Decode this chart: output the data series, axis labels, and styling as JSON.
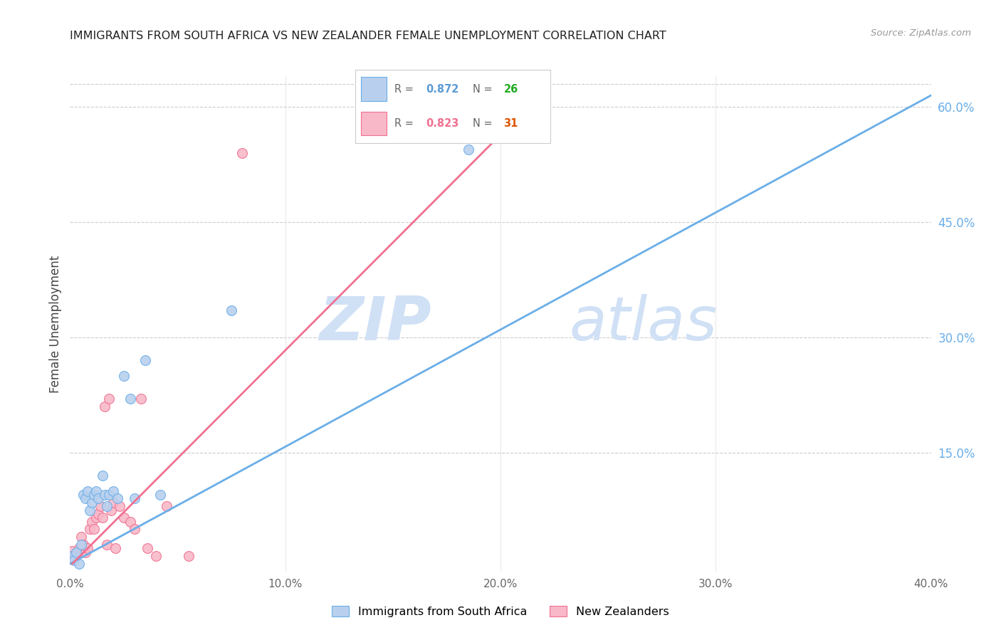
{
  "title": "IMMIGRANTS FROM SOUTH AFRICA VS NEW ZEALANDER FEMALE UNEMPLOYMENT CORRELATION CHART",
  "source": "Source: ZipAtlas.com",
  "ylabel": "Female Unemployment",
  "legend_blue_r": "0.872",
  "legend_blue_n": "26",
  "legend_pink_r": "0.823",
  "legend_pink_n": "31",
  "blue_color": "#b8d0ee",
  "pink_color": "#f8b8c8",
  "blue_line_color": "#6aaee8",
  "pink_line_color": "#f07090",
  "legend_r_color_blue": "#5b9bd5",
  "legend_n_color_blue": "#22aa22",
  "legend_r_color_pink": "#f07090",
  "legend_n_color_pink": "#dd5500",
  "watermark_zip": "ZIP",
  "watermark_atlas": "atlas",
  "watermark_color": "#d0e0f5",
  "xlim": [
    0.0,
    0.4
  ],
  "ylim": [
    -0.005,
    0.64
  ],
  "xticks": [
    0.0,
    0.1,
    0.2,
    0.3,
    0.4
  ],
  "yticks_right": [
    0.15,
    0.3,
    0.45,
    0.6
  ],
  "background": "#ffffff",
  "blue_scatter_x": [
    0.001,
    0.002,
    0.003,
    0.004,
    0.005,
    0.006,
    0.007,
    0.008,
    0.009,
    0.01,
    0.011,
    0.012,
    0.013,
    0.015,
    0.016,
    0.017,
    0.018,
    0.02,
    0.022,
    0.025,
    0.028,
    0.03,
    0.035,
    0.042,
    0.075,
    0.185
  ],
  "blue_scatter_y": [
    0.015,
    0.01,
    0.02,
    0.005,
    0.03,
    0.095,
    0.09,
    0.1,
    0.075,
    0.085,
    0.095,
    0.1,
    0.09,
    0.12,
    0.095,
    0.08,
    0.095,
    0.1,
    0.09,
    0.25,
    0.22,
    0.09,
    0.27,
    0.095,
    0.335,
    0.545
  ],
  "pink_scatter_x": [
    0.001,
    0.002,
    0.003,
    0.004,
    0.005,
    0.006,
    0.007,
    0.008,
    0.009,
    0.01,
    0.011,
    0.012,
    0.013,
    0.014,
    0.015,
    0.016,
    0.017,
    0.018,
    0.019,
    0.02,
    0.021,
    0.023,
    0.025,
    0.028,
    0.03,
    0.033,
    0.036,
    0.04,
    0.045,
    0.055,
    0.08
  ],
  "pink_scatter_y": [
    0.022,
    0.015,
    0.018,
    0.025,
    0.04,
    0.03,
    0.02,
    0.025,
    0.05,
    0.06,
    0.05,
    0.065,
    0.07,
    0.08,
    0.065,
    0.21,
    0.03,
    0.22,
    0.075,
    0.085,
    0.025,
    0.08,
    0.065,
    0.06,
    0.05,
    0.22,
    0.025,
    0.015,
    0.08,
    0.015,
    0.54
  ],
  "blue_line_x": [
    0.0,
    0.4
  ],
  "blue_line_y": [
    0.005,
    0.615
  ],
  "pink_line_x": [
    0.001,
    0.22
  ],
  "pink_line_y": [
    0.005,
    0.62
  ]
}
